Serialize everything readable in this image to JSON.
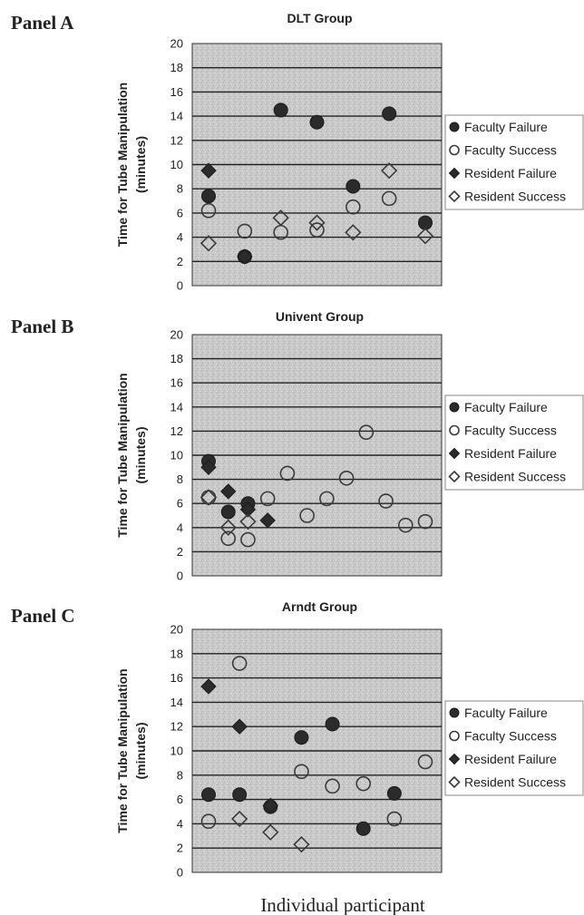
{
  "figure": {
    "xlabel": "Individual participant"
  },
  "chart_data": [
    {
      "type": "scatter",
      "panel_label": "Panel A",
      "title": "DLT Group",
      "ylabel_line1": "Time for Tube Manipulation",
      "ylabel_line2": "(minutes)",
      "ylim": [
        0,
        20
      ],
      "yticks": [
        "0",
        "2",
        "4",
        "6",
        "8",
        "10",
        "12",
        "14",
        "16",
        "18",
        "20"
      ],
      "grid": "horizontal",
      "legend": [
        {
          "name": "Faculty Failure",
          "marker": "filled-circle"
        },
        {
          "name": "Faculty Success",
          "marker": "open-circle"
        },
        {
          "name": "Resident Failure",
          "marker": "filled-diamond"
        },
        {
          "name": "Resident Success",
          "marker": "open-diamond"
        }
      ],
      "series": [
        {
          "name": "Faculty Failure",
          "marker": "filled-circle",
          "points": [
            [
              1,
              7.4
            ],
            [
              2,
              2.4
            ],
            [
              3,
              14.5
            ],
            [
              4,
              13.5
            ],
            [
              5,
              8.2
            ],
            [
              6,
              14.2
            ],
            [
              7,
              5.2
            ]
          ]
        },
        {
          "name": "Faculty Success",
          "marker": "open-circle",
          "points": [
            [
              1,
              6.2
            ],
            [
              2,
              4.5
            ],
            [
              3,
              4.4
            ],
            [
              4,
              4.6
            ],
            [
              5,
              6.5
            ],
            [
              6,
              7.2
            ]
          ]
        },
        {
          "name": "Resident Failure",
          "marker": "filled-diamond",
          "points": [
            [
              1,
              9.5
            ],
            [
              2,
              2.4
            ]
          ]
        },
        {
          "name": "Resident Success",
          "marker": "open-diamond",
          "points": [
            [
              1,
              3.5
            ],
            [
              3,
              5.6
            ],
            [
              4,
              5.2
            ],
            [
              5,
              4.4
            ],
            [
              6,
              9.5
            ],
            [
              7,
              4.1
            ]
          ]
        }
      ]
    },
    {
      "type": "scatter",
      "panel_label": "Panel B",
      "title": "Univent Group",
      "ylabel_line1": "Time for Tube Manipulation",
      "ylabel_line2": "(minutes)",
      "ylim": [
        0,
        20
      ],
      "yticks": [
        "0",
        "2",
        "4",
        "6",
        "8",
        "10",
        "12",
        "14",
        "16",
        "18",
        "20"
      ],
      "grid": "horizontal",
      "legend": [
        {
          "name": "Faculty Failure",
          "marker": "filled-circle"
        },
        {
          "name": "Faculty Success",
          "marker": "open-circle"
        },
        {
          "name": "Resident Failure",
          "marker": "filled-diamond"
        },
        {
          "name": "Resident Success",
          "marker": "open-diamond"
        }
      ],
      "series": [
        {
          "name": "Faculty Failure",
          "marker": "filled-circle",
          "points": [
            [
              1,
              9.5
            ],
            [
              2,
              5.3
            ],
            [
              3,
              6.0
            ]
          ]
        },
        {
          "name": "Faculty Success",
          "marker": "open-circle",
          "points": [
            [
              1,
              6.5
            ],
            [
              2,
              3.1
            ],
            [
              3,
              3.0
            ],
            [
              4,
              6.4
            ],
            [
              5,
              8.5
            ],
            [
              6,
              5.0
            ],
            [
              7,
              6.4
            ],
            [
              8,
              8.1
            ],
            [
              9,
              11.9
            ],
            [
              10,
              6.2
            ],
            [
              11,
              4.2
            ],
            [
              12,
              4.5
            ]
          ]
        },
        {
          "name": "Resident Failure",
          "marker": "filled-diamond",
          "points": [
            [
              1,
              9.0
            ],
            [
              2,
              7.0
            ],
            [
              3,
              5.5
            ],
            [
              4,
              4.6
            ]
          ]
        },
        {
          "name": "Resident Success",
          "marker": "open-diamond",
          "points": [
            [
              1,
              6.5
            ],
            [
              2,
              4.0
            ],
            [
              3,
              4.5
            ]
          ]
        }
      ]
    },
    {
      "type": "scatter",
      "panel_label": "Panel C",
      "title": "Arndt Group",
      "ylabel_line1": "Time for Tube Manipulation",
      "ylabel_line2": "(minutes)",
      "ylim": [
        0,
        20
      ],
      "yticks": [
        "0",
        "2",
        "4",
        "6",
        "8",
        "10",
        "12",
        "14",
        "16",
        "18",
        "20"
      ],
      "grid": "horizontal",
      "legend": [
        {
          "name": "Faculty Failure",
          "marker": "filled-circle"
        },
        {
          "name": "Faculty Success",
          "marker": "open-circle"
        },
        {
          "name": "Resident Failure",
          "marker": "filled-diamond"
        },
        {
          "name": "Resident Success",
          "marker": "open-diamond"
        }
      ],
      "series": [
        {
          "name": "Faculty Failure",
          "marker": "filled-circle",
          "points": [
            [
              1,
              6.4
            ],
            [
              2,
              6.4
            ],
            [
              3,
              5.4
            ],
            [
              4,
              11.1
            ],
            [
              5,
              12.2
            ],
            [
              6,
              3.6
            ],
            [
              7,
              6.5
            ]
          ]
        },
        {
          "name": "Faculty Success",
          "marker": "open-circle",
          "points": [
            [
              1,
              4.2
            ],
            [
              2,
              17.2
            ],
            [
              4,
              8.3
            ],
            [
              5,
              7.1
            ],
            [
              6,
              7.3
            ],
            [
              7,
              4.4
            ],
            [
              8,
              9.1
            ]
          ]
        },
        {
          "name": "Resident Failure",
          "marker": "filled-diamond",
          "points": [
            [
              1,
              15.3
            ],
            [
              2,
              12.0
            ],
            [
              3,
              5.5
            ]
          ]
        },
        {
          "name": "Resident Success",
          "marker": "open-diamond",
          "points": [
            [
              2,
              4.4
            ],
            [
              3,
              3.3
            ],
            [
              4,
              2.3
            ]
          ]
        }
      ]
    }
  ]
}
